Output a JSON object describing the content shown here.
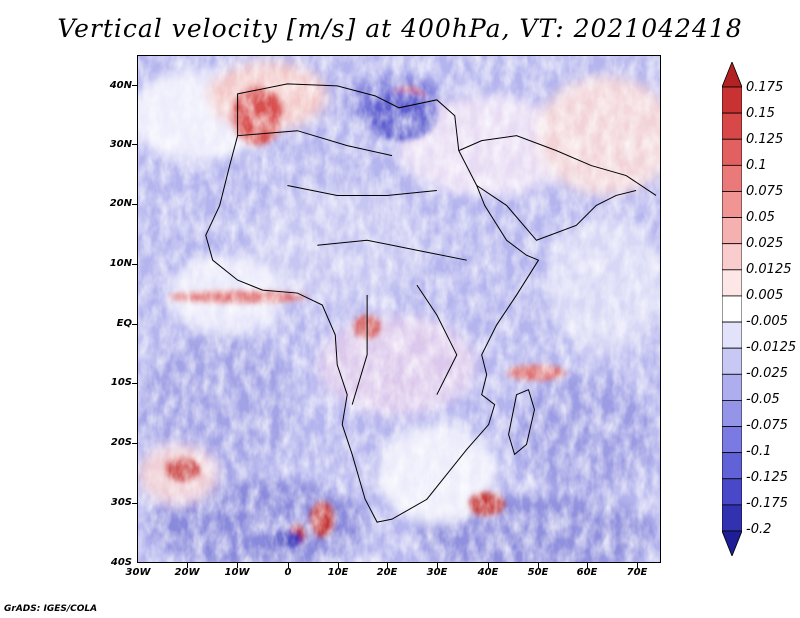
{
  "title": "Vertical velocity [m/s] at 400hPa, VT: 2021042418",
  "credit": "GrADS: IGES/COLA",
  "map": {
    "description_region": "Africa and Arabian Peninsula",
    "lat_labels": [
      "40N",
      "30N",
      "20N",
      "10N",
      "EQ",
      "10S",
      "20S",
      "30S",
      "40S"
    ],
    "lon_labels": [
      "30W",
      "20W",
      "10W",
      "0",
      "10E",
      "20E",
      "30E",
      "40E",
      "50E",
      "60E",
      "70E"
    ]
  },
  "colorbar": {
    "labels": [
      "0.175",
      "0.15",
      "0.125",
      "0.1",
      "0.075",
      "0.05",
      "0.025",
      "0.0125",
      "0.005",
      "-0.005",
      "-0.0125",
      "-0.025",
      "-0.05",
      "-0.075",
      "-0.1",
      "-0.125",
      "-0.175",
      "-0.2"
    ],
    "colors": [
      "#b22222",
      "#c83232",
      "#d84848",
      "#e26060",
      "#ea7a7a",
      "#f09494",
      "#f5b0b0",
      "#f9cdcd",
      "#fce6e6",
      "#ffffff",
      "#e2e2fa",
      "#c8c8f4",
      "#aeaeee",
      "#9494e8",
      "#7a7ae2",
      "#6262d8",
      "#4848c8",
      "#3232b0",
      "#1e1e96"
    ]
  }
}
